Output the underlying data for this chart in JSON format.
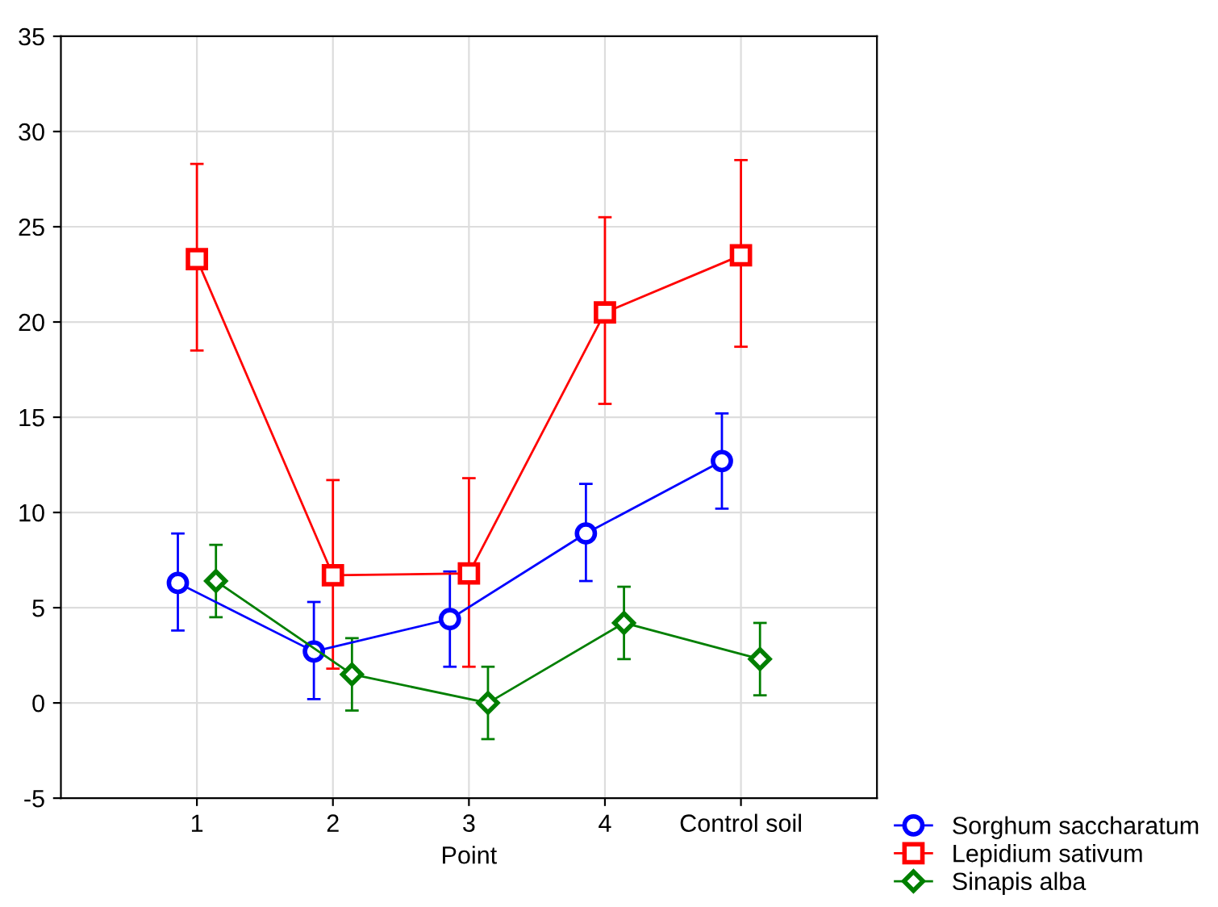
{
  "chart_data": {
    "type": "line",
    "xlabel": "Point",
    "categories": [
      "1",
      "2",
      "3",
      "4",
      "Control soil"
    ],
    "ylim": [
      -5,
      35
    ],
    "yticks": [
      -5,
      0,
      5,
      10,
      15,
      20,
      25,
      30,
      35
    ],
    "grid": true,
    "legend": "bottom right",
    "series": [
      {
        "name": "Sorghum saccharatum",
        "color": "#0000ff",
        "marker": "circle",
        "values": [
          6.3,
          2.7,
          4.4,
          8.9,
          12.7
        ],
        "errors": [
          [
            3.8,
            8.9
          ],
          [
            0.2,
            5.3
          ],
          [
            1.9,
            6.9
          ],
          [
            6.4,
            11.5
          ],
          [
            10.2,
            15.2
          ]
        ]
      },
      {
        "name": "Lepidium sativum",
        "color": "#ff0000",
        "marker": "square",
        "values": [
          23.3,
          6.7,
          6.8,
          20.5,
          23.5
        ],
        "errors": [
          [
            18.5,
            28.3
          ],
          [
            1.8,
            11.7
          ],
          [
            1.9,
            11.8
          ],
          [
            15.7,
            25.5
          ],
          [
            18.7,
            28.5
          ]
        ]
      },
      {
        "name": "Sinapis alba",
        "color": "#007f00",
        "marker": "diamond",
        "values": [
          6.4,
          1.5,
          0.0,
          4.2,
          2.3
        ],
        "errors": [
          [
            4.5,
            8.3
          ],
          [
            -0.4,
            3.4
          ],
          [
            -1.9,
            1.9
          ],
          [
            2.3,
            6.1
          ],
          [
            0.4,
            4.2
          ]
        ]
      }
    ]
  }
}
